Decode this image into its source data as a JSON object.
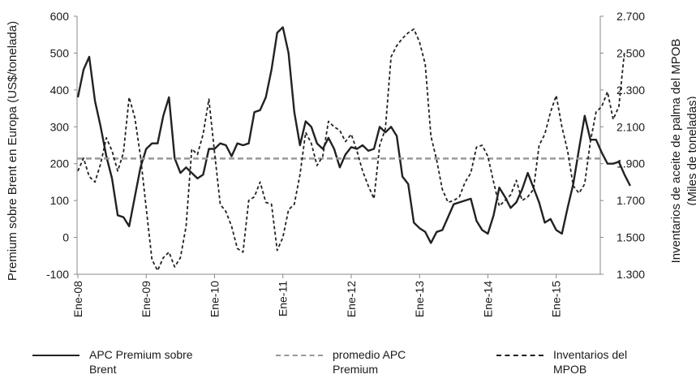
{
  "chart_data": {
    "type": "line",
    "ylabel": "Premium sobre Brent en Europa (US$/tonelada)",
    "y2label_lines": [
      "Inventarios de aceite de palma del MPOB",
      "(Miles de toneladas)"
    ],
    "ylim": [
      -100,
      600
    ],
    "y2lim": [
      1300,
      2700
    ],
    "y_ticks": [
      "-100",
      "0",
      "100",
      "200",
      "300",
      "400",
      "500",
      "600"
    ],
    "y2_ticks": [
      "1.300",
      "1.500",
      "1.700",
      "1.900",
      "2.100",
      "2.300",
      "2.500",
      "2.700"
    ],
    "x_tick_labels": [
      "Ene-08",
      "Ene-09",
      "Ene-10",
      "Ene-11",
      "Ene-12",
      "Ene-13",
      "Ene-14",
      "Ene-15"
    ],
    "start_month": "2008-01",
    "series": [
      {
        "name": "APC Premium sobre Brent",
        "axis": "left",
        "color": "#222222",
        "dash": "solid",
        "values": [
          380,
          455,
          490,
          370,
          300,
          220,
          160,
          60,
          55,
          30,
          110,
          190,
          240,
          255,
          255,
          330,
          380,
          215,
          175,
          190,
          175,
          160,
          170,
          240,
          240,
          255,
          250,
          220,
          255,
          250,
          255,
          340,
          345,
          380,
          455,
          555,
          570,
          500,
          340,
          250,
          315,
          300,
          255,
          240,
          270,
          240,
          190,
          225,
          245,
          240,
          250,
          235,
          240,
          300,
          285,
          300,
          275,
          165,
          145,
          40,
          25,
          15,
          -15,
          15,
          20,
          55,
          90,
          95,
          100,
          105,
          45,
          20,
          10,
          60,
          135,
          110,
          80,
          95,
          130,
          175,
          135,
          95,
          40,
          50,
          20,
          10,
          80,
          145,
          240,
          330,
          265,
          265,
          230,
          200,
          200,
          205,
          170,
          140
        ]
      },
      {
        "name": "promedio APC Premium",
        "axis": "left",
        "color": "#999999",
        "dash": "dashed",
        "value": 214
      },
      {
        "name": "Inventarios del MPOB",
        "axis": "right",
        "color": "#222222",
        "dash": "dashed",
        "values": [
          1860,
          1930,
          1830,
          1800,
          1900,
          2040,
          1970,
          1860,
          1960,
          2260,
          2150,
          1940,
          1660,
          1380,
          1320,
          1390,
          1420,
          1340,
          1390,
          1560,
          1980,
          1950,
          2060,
          2250,
          1960,
          1680,
          1640,
          1560,
          1440,
          1420,
          1700,
          1720,
          1800,
          1690,
          1680,
          1430,
          1500,
          1650,
          1680,
          1840,
          2070,
          2010,
          1890,
          1940,
          2130,
          2100,
          2080,
          2020,
          2060,
          1970,
          1860,
          1780,
          1710,
          2000,
          2090,
          2480,
          2540,
          2580,
          2610,
          2630,
          2560,
          2440,
          2050,
          1920,
          1760,
          1690,
          1700,
          1720,
          1800,
          1850,
          1990,
          2000,
          1940,
          1800,
          1670,
          1700,
          1730,
          1810,
          1700,
          1720,
          1760,
          2000,
          2060,
          2180,
          2270,
          2100,
          1970,
          1780,
          1740,
          1790,
          2020,
          2180,
          2210,
          2290,
          2140,
          2210,
          2510
        ]
      }
    ]
  },
  "legend": {
    "item1_lines": [
      "APC Premium sobre",
      "Brent"
    ],
    "item2_lines": [
      "promedio APC",
      "Premium"
    ],
    "item3_lines": [
      "Inventarios del",
      "MPOB"
    ]
  }
}
